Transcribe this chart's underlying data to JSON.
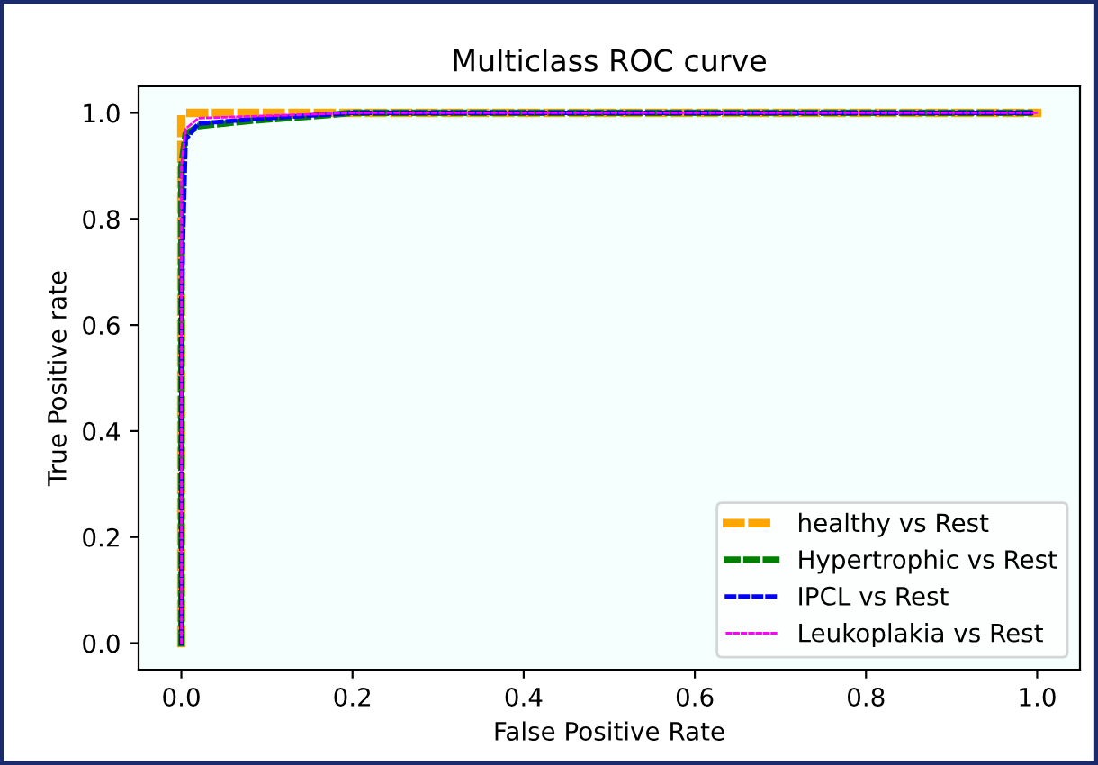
{
  "chart_data": {
    "type": "line",
    "title": "Multiclass ROC curve",
    "xlabel": "False Positive Rate",
    "ylabel": "True Positive rate",
    "xlim": [
      -0.05,
      1.05
    ],
    "ylim": [
      -0.05,
      1.05
    ],
    "xticks": [
      {
        "value": 0,
        "label": "0.0"
      },
      0.2,
      0.4,
      0.6,
      0.8,
      {
        "value": 1,
        "label": "1.0"
      }
    ],
    "yticks": [
      {
        "value": 0,
        "label": "0.0"
      },
      0.2,
      0.4,
      0.6,
      0.8,
      {
        "value": 1,
        "label": "1.0"
      }
    ],
    "grid": false,
    "legend": "bottom right",
    "line_style": "dashed",
    "series": [
      {
        "name": "healthy vs Rest",
        "color": "#ffa500",
        "x": [
          0,
          0,
          0.01,
          1
        ],
        "values": [
          0,
          0.99,
          1,
          1
        ]
      },
      {
        "name": "Hypertrophic vs Rest",
        "color": "#008000",
        "x": [
          0,
          0,
          0.005,
          0.02,
          0.08,
          0.15,
          0.2,
          1
        ],
        "values": [
          0,
          0.9,
          0.96,
          0.975,
          0.985,
          0.993,
          1,
          1
        ]
      },
      {
        "name": "IPCL vs Rest",
        "color": "#0000ff",
        "x": [
          0,
          0,
          0.005,
          0.02,
          0.1,
          0.2,
          1
        ],
        "values": [
          0,
          0.65,
          0.95,
          0.98,
          0.99,
          1,
          1
        ]
      },
      {
        "name": "Leukoplakia vs Rest",
        "color": "#ff00ff",
        "x": [
          0,
          0,
          0.005,
          0.02,
          0.2,
          1
        ],
        "values": [
          0,
          0.9,
          0.97,
          0.99,
          1,
          1
        ]
      }
    ]
  }
}
